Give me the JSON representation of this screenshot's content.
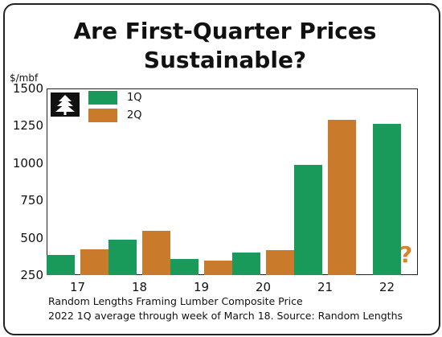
{
  "title_line1": "Are First-Quarter Prices",
  "title_line2": "Sustainable?",
  "unit_label": "$/mbf",
  "question_mark": "?",
  "footnote_line1": "Random Lengths Framing Lumber Composite Price",
  "footnote_line2": "2022 1Q average through week of March 18.  Source: Random Lengths",
  "colors": {
    "q1": "#1a9a5a",
    "q2": "#c97a2b",
    "accent": "#d4862c"
  },
  "chart_data": {
    "type": "bar",
    "categories": [
      "17",
      "18",
      "19",
      "20",
      "21",
      "22"
    ],
    "series": [
      {
        "name": "1Q",
        "values": [
          385,
          485,
          360,
          400,
          990,
          1265
        ]
      },
      {
        "name": "2Q",
        "values": [
          420,
          545,
          348,
          415,
          1290,
          null
        ]
      }
    ],
    "yticks": [
      "1500",
      "1250",
      "1000",
      "750",
      "500",
      "250"
    ],
    "ylim": [
      250,
      1500
    ],
    "legend_placement": "top-left",
    "grid": false
  }
}
